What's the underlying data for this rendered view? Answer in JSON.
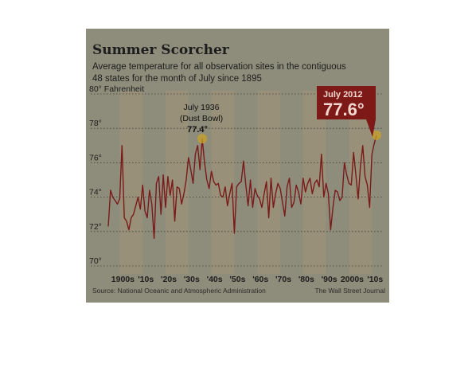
{
  "header": {
    "title": "Summer Scorcher",
    "subtitle_line1": "Average temperature for all observation sites in the contiguous",
    "subtitle_line2": "48 states for the month of July since 1895"
  },
  "annotation": {
    "line1": "July 1936",
    "line2": "(Dust Bowl)",
    "value": "77.4°"
  },
  "callout": {
    "label": "July 2012",
    "value": "77.6°"
  },
  "footer": {
    "source": "Source: National Oceanic and Atmospheric Administration",
    "credit": "The Wall Street Journal"
  },
  "colors": {
    "background": "#8e8d7b",
    "band": "#a09376",
    "line": "#7a1a1a",
    "callout": "#7d1a18",
    "highlight": "#c9a227"
  },
  "chart_data": {
    "type": "line",
    "title": "Summer Scorcher",
    "ylabel": "Fahrenheit",
    "ylim": [
      70,
      80
    ],
    "xlim": [
      1895,
      2012
    ],
    "yticks": [
      70,
      72,
      74,
      76,
      78,
      80
    ],
    "ytick_labels": [
      "70°",
      "72°",
      "74°",
      "76°",
      "78°",
      "80° Fahrenheit"
    ],
    "xticks": [
      1900,
      1910,
      1920,
      1930,
      1940,
      1950,
      1960,
      1970,
      1980,
      1990,
      2000,
      2010
    ],
    "xtick_labels": [
      "1900s",
      "'10s",
      "'20s",
      "'30s",
      "'40s",
      "'50s",
      "'60s",
      "'70s",
      "'80s",
      "'90s",
      "2000s",
      "'10s"
    ],
    "grid": "horizontal dotted",
    "bands": "alternating decades",
    "highlight_points": [
      {
        "x": 1936,
        "y": 77.4
      },
      {
        "x": 2012,
        "y": 77.6
      }
    ],
    "series": [
      {
        "x": [
          1895,
          1896,
          1897,
          1898,
          1899,
          1900,
          1901,
          1902,
          1903,
          1904,
          1905,
          1906,
          1907,
          1908,
          1909,
          1910,
          1911,
          1912,
          1913,
          1914,
          1915,
          1916,
          1917,
          1918,
          1919,
          1920,
          1921,
          1922,
          1923,
          1924,
          1925,
          1926,
          1927,
          1928,
          1929,
          1930,
          1931,
          1932,
          1933,
          1934,
          1935,
          1936,
          1937,
          1938,
          1939,
          1940,
          1941,
          1942,
          1943,
          1944,
          1945,
          1946,
          1947,
          1948,
          1949,
          1950,
          1951,
          1952,
          1953,
          1954,
          1955,
          1956,
          1957,
          1958,
          1959,
          1960,
          1961,
          1962,
          1963,
          1964,
          1965,
          1966,
          1967,
          1968,
          1969,
          1970,
          1971,
          1972,
          1973,
          1974,
          1975,
          1976,
          1977,
          1978,
          1979,
          1980,
          1981,
          1982,
          1983,
          1984,
          1985,
          1986,
          1987,
          1988,
          1989,
          1990,
          1991,
          1992,
          1993,
          1994,
          1995,
          1996,
          1997,
          1998,
          1999,
          2000,
          2001,
          2002,
          2003,
          2004,
          2005,
          2006,
          2007,
          2008,
          2009,
          2010,
          2011,
          2012
        ],
        "values": [
          72.3,
          74.4,
          74.0,
          73.8,
          73.6,
          73.9,
          77.0,
          72.8,
          72.6,
          72.1,
          72.8,
          73.0,
          73.5,
          74.0,
          73.3,
          74.7,
          73.2,
          72.8,
          74.4,
          73.6,
          71.6,
          74.8,
          75.2,
          73.0,
          75.3,
          73.4,
          75.2,
          74.1,
          75.0,
          72.6,
          74.6,
          74.5,
          73.6,
          74.2,
          75.0,
          76.3,
          75.6,
          74.8,
          76.5,
          77.0,
          75.6,
          77.4,
          76.0,
          75.0,
          74.5,
          75.5,
          74.9,
          74.7,
          74.8,
          74.1,
          74.0,
          74.6,
          73.5,
          74.2,
          74.8,
          71.9,
          74.6,
          74.8,
          74.9,
          76.1,
          74.7,
          73.5,
          75.0,
          73.4,
          74.5,
          74.1,
          73.9,
          73.4,
          74.2,
          74.9,
          72.8,
          75.1,
          73.4,
          74.2,
          74.8,
          74.5,
          73.7,
          72.9,
          74.6,
          75.1,
          73.4,
          73.7,
          74.7,
          74.3,
          73.6,
          75.1,
          74.3,
          74.8,
          75.1,
          74.2,
          74.8,
          75.0,
          74.6,
          76.5,
          74.0,
          74.8,
          74.2,
          72.1,
          73.4,
          74.4,
          74.3,
          73.8,
          74.0,
          76.0,
          75.3,
          74.8,
          74.7,
          76.6,
          75.3,
          73.9,
          75.8,
          77.0,
          75.2,
          74.7,
          73.4,
          76.5,
          77.1,
          77.6
        ]
      }
    ]
  }
}
